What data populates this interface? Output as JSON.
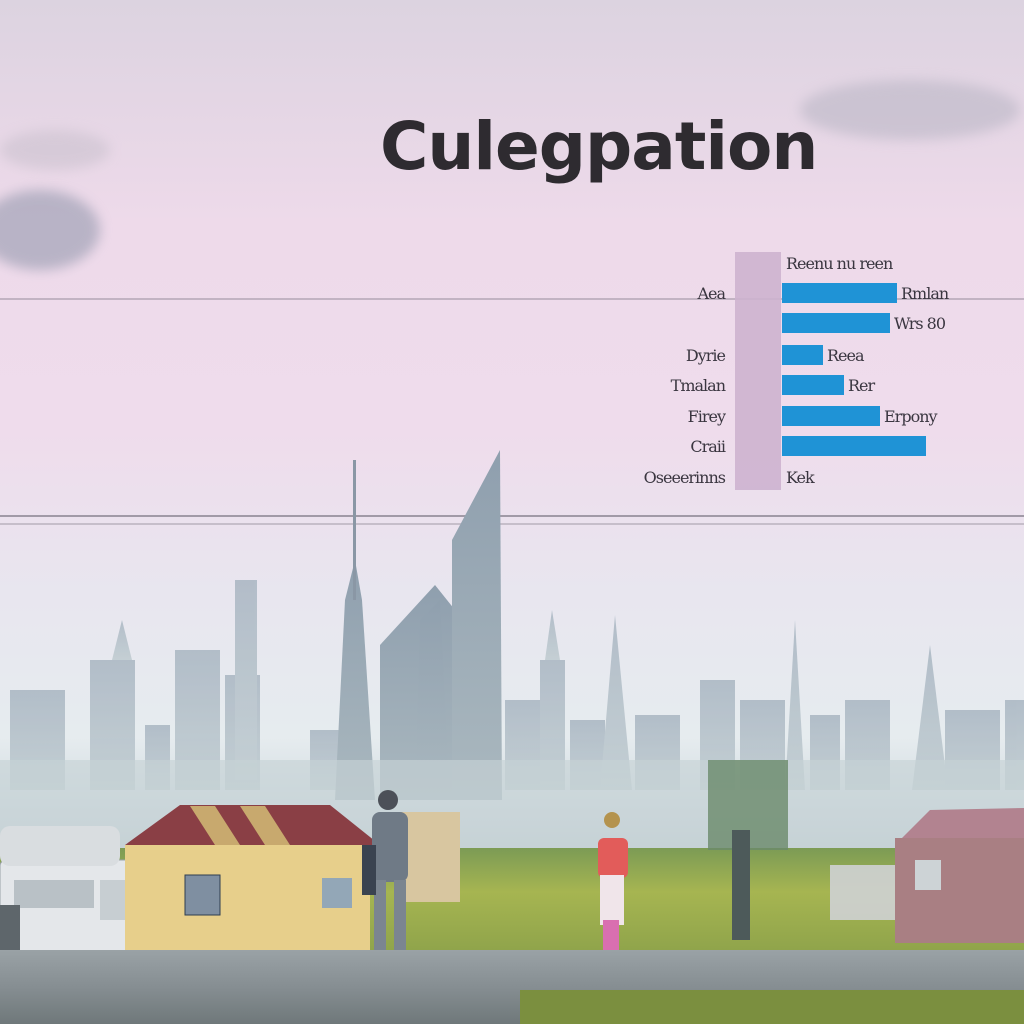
{
  "title": "Culegpation",
  "chart_rows": [
    {
      "label": "",
      "right": "Reenu nu reen",
      "value": 0
    },
    {
      "label": "Aea",
      "right": "Rmlan",
      "value": 0.48
    },
    {
      "label": "",
      "right": "Wrs 80",
      "value": 0.45
    },
    {
      "label": "Dyrie",
      "right": "Reea",
      "value": 0.17
    },
    {
      "label": "Tmalan",
      "right": "Rer",
      "value": 0.26
    },
    {
      "label": "Firey",
      "right": "Erpony",
      "value": 0.41
    },
    {
      "label": "Craii",
      "right": "",
      "value": 0.6
    },
    {
      "label": "Oseeerinns",
      "right": "Kek",
      "value": 0
    }
  ],
  "colors": {
    "bar": "#1f93d6",
    "swatch": "#c4a8c7",
    "title": "#2e2b30"
  }
}
